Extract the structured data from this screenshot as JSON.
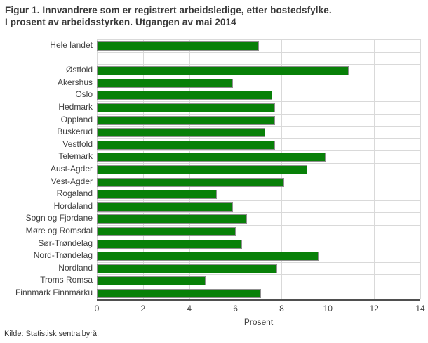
{
  "title": "Figur 1. Innvandrere som er registrert arbeidsledige, etter bostedsfylke.\nI prosent av arbeidsstyrken. Utgangen av mai 2014",
  "footer": "Kilde: Statistisk sentralbyrå.",
  "colors": {
    "bar": "#088008",
    "bar_border": "#8f8f8f",
    "grid": "#d9d9d9",
    "axis": "#4f4f4f",
    "title_text": "#3a3a3a",
    "label_text": "#414141"
  },
  "chart_data": {
    "type": "bar",
    "orientation": "horizontal",
    "title": "Figur 1. Innvandrere som er registrert arbeidsledige, etter bostedsfylke. I prosent av arbeidsstyrken. Utgangen av mai 2014",
    "xlabel": "Prosent",
    "ylabel": "",
    "xlim": [
      0,
      14
    ],
    "xticks": [
      0,
      2,
      4,
      6,
      8,
      10,
      12,
      14
    ],
    "grid": true,
    "legend": "none",
    "gap_after_category": "Hele landet",
    "categories": [
      "Hele landet",
      "Østfold",
      "Akershus",
      "Oslo",
      "Hedmark",
      "Oppland",
      "Buskerud",
      "Vestfold",
      "Telemark",
      "Aust-Agder",
      "Vest-Agder",
      "Rogaland",
      "Hordaland",
      "Sogn og Fjordane",
      "Møre og Romsdal",
      "Sør-Trøndelag",
      "Nord-Trøndelag",
      "Nordland",
      "Troms Romsa",
      "Finnmark Finnmárku"
    ],
    "values": [
      7.0,
      10.9,
      5.9,
      7.6,
      7.7,
      7.7,
      7.3,
      7.7,
      9.9,
      9.1,
      8.1,
      5.2,
      5.9,
      6.5,
      6.0,
      6.3,
      9.6,
      7.8,
      4.7,
      7.1
    ]
  }
}
